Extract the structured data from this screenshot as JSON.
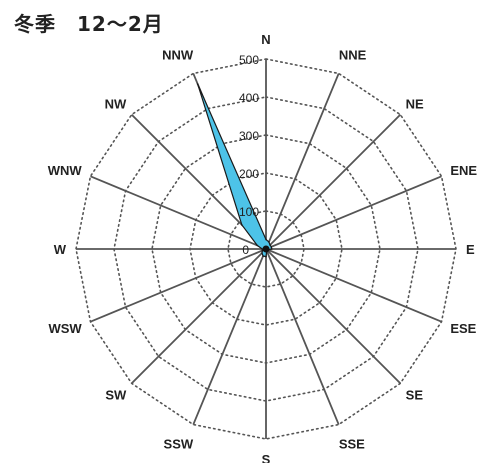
{
  "chart_data": {
    "type": "radar",
    "title": "冬季　12〜2月",
    "directions": [
      "N",
      "NNE",
      "NE",
      "ENE",
      "E",
      "ESE",
      "SE",
      "SSE",
      "S",
      "SSW",
      "SW",
      "WSW",
      "W",
      "WNW",
      "NW",
      "NNW"
    ],
    "values": [
      25,
      20,
      15,
      15,
      15,
      5,
      5,
      5,
      20,
      20,
      15,
      10,
      10,
      25,
      90,
      470
    ],
    "rlim": [
      0,
      500
    ],
    "rticks": [
      0,
      100,
      200,
      300,
      400,
      500
    ],
    "grid": true,
    "colors": {
      "fill": "#4dc3e8",
      "stroke": "#1a1a1a",
      "grid": "#555555",
      "spoke": "#555555"
    }
  }
}
